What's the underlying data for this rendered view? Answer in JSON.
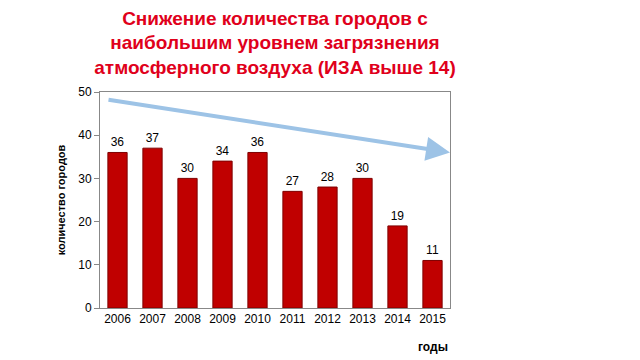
{
  "chart_data": {
    "type": "bar",
    "title": "Снижение количества городов с наибольшим уровнем загрязнения атмосферного воздуха (ИЗА выше 14)",
    "x_label": "годы",
    "y_label": "количество городов",
    "categories": [
      "2006",
      "2007",
      "2008",
      "2009",
      "2010",
      "2011",
      "2012",
      "2013",
      "2014",
      "2015"
    ],
    "values": [
      36,
      37,
      30,
      34,
      36,
      27,
      28,
      30,
      19,
      11
    ],
    "color": "#c00000",
    "ylim": [
      0,
      50
    ],
    "yticks": [
      0,
      10,
      20,
      30,
      40,
      50
    ],
    "grid": false,
    "data_labels": true
  }
}
